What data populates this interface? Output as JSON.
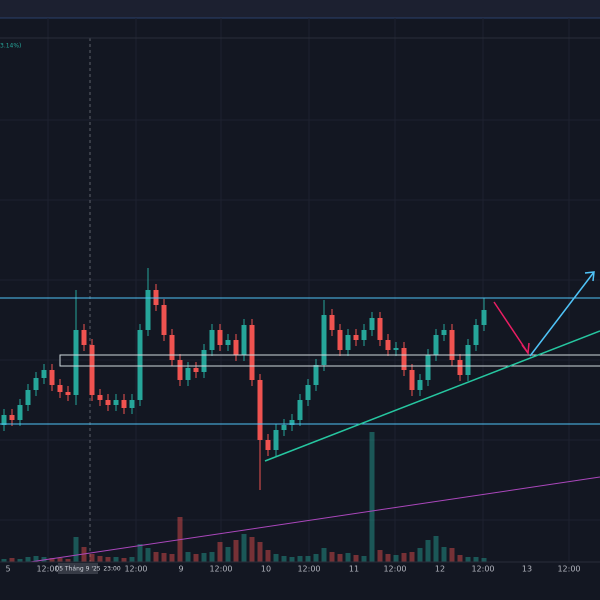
{
  "chart_data": {
    "type": "candlestick",
    "change_label": "3.14%)",
    "open": [
      135,
      145,
      140,
      155,
      170,
      182,
      190,
      175,
      168,
      165,
      230,
      215,
      165,
      160,
      155,
      160,
      152,
      160,
      230,
      270,
      255,
      225,
      200,
      180,
      192,
      188,
      210,
      230,
      215,
      220,
      205,
      235,
      180,
      120,
      110,
      130,
      135,
      140,
      160,
      175,
      195,
      245,
      230,
      210,
      225,
      220,
      230,
      242,
      220,
      210,
      212,
      190,
      170,
      180,
      205,
      225,
      230,
      200,
      185,
      215,
      235
    ],
    "high": [
      151,
      151,
      161,
      176,
      188,
      196,
      196,
      181,
      174,
      270,
      236,
      221,
      171,
      166,
      166,
      166,
      166,
      236,
      292,
      276,
      261,
      231,
      206,
      198,
      198,
      216,
      236,
      236,
      226,
      226,
      241,
      241,
      186,
      126,
      136,
      141,
      146,
      166,
      181,
      201,
      260,
      251,
      236,
      231,
      231,
      236,
      248,
      248,
      226,
      218,
      218,
      196,
      186,
      211,
      231,
      236,
      236,
      206,
      221,
      241,
      262
    ],
    "low": [
      129,
      134,
      134,
      149,
      164,
      176,
      169,
      162,
      159,
      155,
      209,
      159,
      154,
      149,
      149,
      146,
      146,
      154,
      224,
      249,
      219,
      194,
      174,
      174,
      182,
      182,
      204,
      209,
      209,
      199,
      199,
      174,
      70,
      104,
      104,
      124,
      129,
      134,
      154,
      169,
      189,
      224,
      204,
      204,
      214,
      214,
      224,
      214,
      204,
      204,
      184,
      164,
      164,
      174,
      199,
      219,
      194,
      179,
      179,
      209,
      229
    ],
    "close": [
      145,
      140,
      155,
      170,
      182,
      190,
      175,
      168,
      165,
      230,
      215,
      165,
      160,
      155,
      160,
      152,
      160,
      230,
      270,
      255,
      225,
      200,
      180,
      192,
      188,
      210,
      230,
      215,
      220,
      205,
      235,
      180,
      120,
      110,
      130,
      135,
      140,
      160,
      175,
      195,
      245,
      230,
      210,
      225,
      220,
      230,
      242,
      220,
      210,
      212,
      190,
      170,
      180,
      205,
      225,
      230,
      200,
      185,
      215,
      235,
      250
    ],
    "volume": [
      3,
      4,
      3,
      5,
      6,
      5,
      4,
      4,
      3,
      25,
      15,
      8,
      6,
      5,
      5,
      4,
      5,
      18,
      14,
      10,
      9,
      8,
      45,
      10,
      8,
      9,
      10,
      20,
      15,
      22,
      28,
      25,
      20,
      12,
      8,
      6,
      5,
      6,
      6,
      8,
      14,
      10,
      8,
      9,
      7,
      6,
      130,
      12,
      8,
      7,
      9,
      10,
      14,
      22,
      26,
      15,
      14,
      7,
      5,
      5,
      4
    ],
    "ylim": [
      0,
      560
    ],
    "vlim": [
      0,
      140
    ],
    "up_color": "#26a69a",
    "down_color": "#ef5350",
    "x_labels": [
      "5",
      "12:00",
      "05 Tháng 9 '25",
      "23:00",
      "12:00",
      "9",
      "12:00",
      "10",
      "12:00",
      "11",
      "12:00",
      "12",
      "12:00",
      "13",
      "12:00"
    ]
  }
}
